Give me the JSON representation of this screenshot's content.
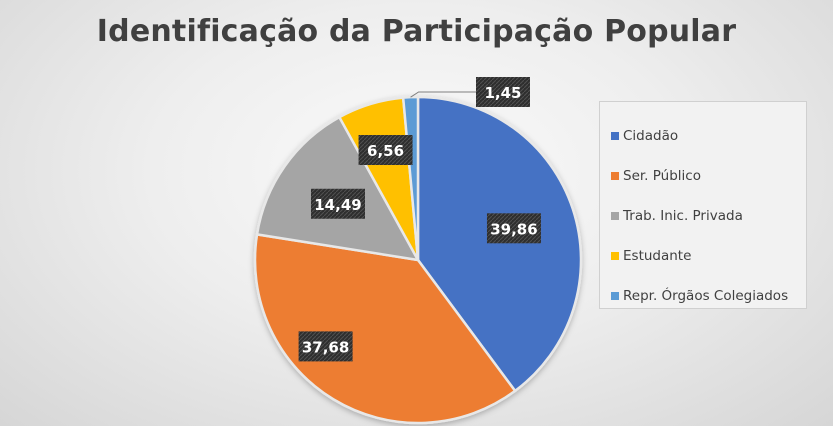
{
  "chart_data": {
    "type": "pie",
    "title": "Identificação da Participação Popular",
    "legend_position": "right",
    "slices": [
      {
        "label": "Cidadão",
        "value": 39.86,
        "display": "39,86",
        "color": "#4472C4"
      },
      {
        "label": "Ser. Público",
        "value": 37.68,
        "display": "37,68",
        "color": "#ED7D31"
      },
      {
        "label": "Trab. Inic. Privada",
        "value": 14.49,
        "display": "14,49",
        "color": "#A5A5A5"
      },
      {
        "label": "Estudante",
        "value": 6.56,
        "display": "6,56",
        "color": "#FFC000"
      },
      {
        "label": "Repr. Órgãos Colegiados",
        "value": 1.45,
        "display": "1,45",
        "color": "#5B9BD5"
      }
    ]
  }
}
